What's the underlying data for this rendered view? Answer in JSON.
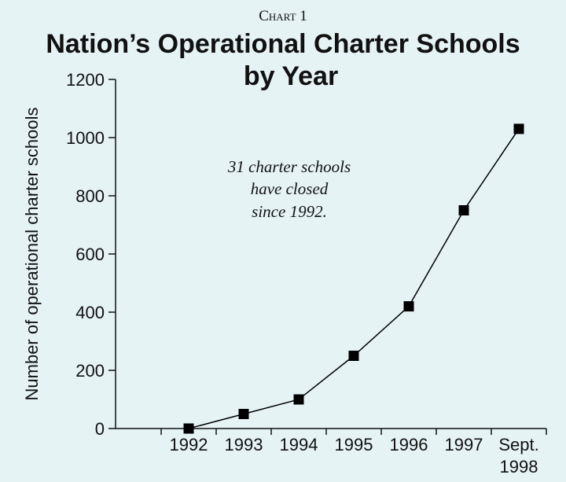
{
  "chart_data": {
    "type": "line",
    "kicker": "Chart 1",
    "title": [
      "Nation’s Operational Charter Schools",
      "by Year"
    ],
    "y_label": "Number of operational charter schools",
    "annotation": [
      "31 charter schools",
      "have closed",
      "since 1992."
    ],
    "categories": [
      "1992",
      "1993",
      "1994",
      "1995",
      "1996",
      "1997",
      "Sept. 1998"
    ],
    "values": [
      0,
      50,
      100,
      250,
      420,
      750,
      1030
    ],
    "color": "#000000",
    "ylim": [
      0,
      1200
    ],
    "yticks": [
      0,
      200,
      400,
      600,
      800,
      1000,
      1200
    ],
    "grid": false
  }
}
